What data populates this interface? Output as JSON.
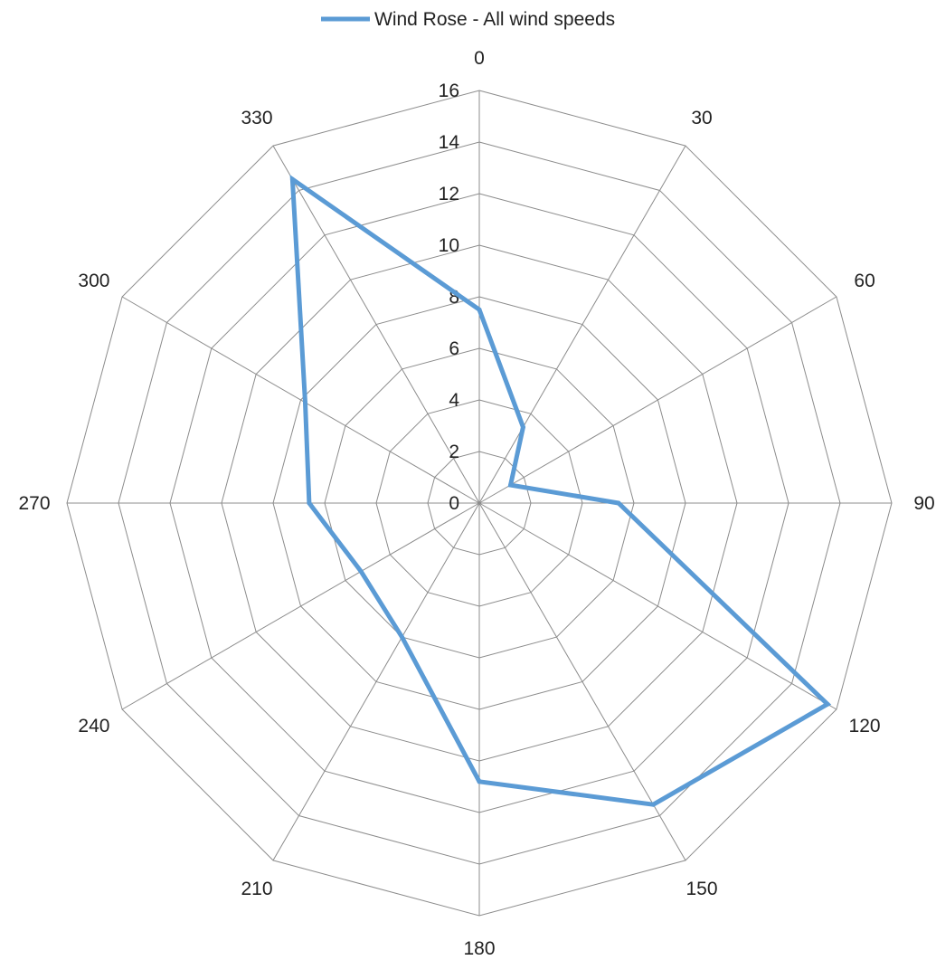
{
  "chart_data": {
    "type": "radar",
    "legend": {
      "position": "top",
      "entries": [
        "Wind Rose - All wind speeds"
      ]
    },
    "categories": [
      "0",
      "30",
      "60",
      "90",
      "120",
      "150",
      "180",
      "210",
      "240",
      "270",
      "300",
      "330"
    ],
    "radial_axis": {
      "min": 0,
      "max": 16,
      "step": 2,
      "ticks": [
        "0",
        "2",
        "4",
        "6",
        "8",
        "10",
        "12",
        "14",
        "16"
      ]
    },
    "grid": true,
    "series": [
      {
        "name": "Wind Rose - All wind speeds",
        "color": "#5b9bd5",
        "values": [
          7.5,
          3.4,
          1.4,
          5.4,
          15.6,
          13.5,
          10.8,
          6.0,
          5.3,
          6.6,
          7.8,
          14.5
        ]
      }
    ]
  }
}
